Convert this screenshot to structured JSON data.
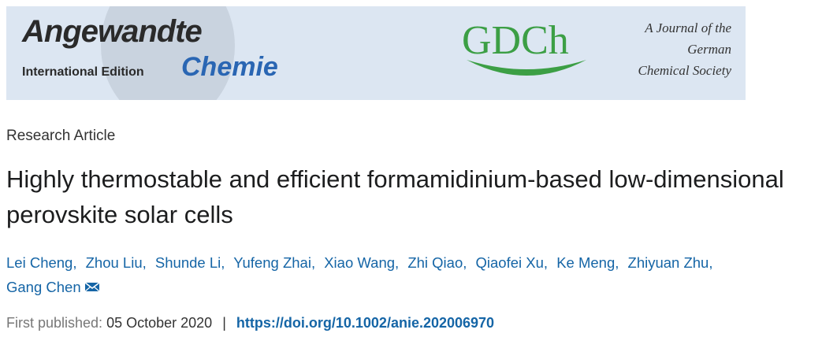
{
  "banner": {
    "journal_name": "Angewandte",
    "edition": "International Edition",
    "journal_subtitle": "Chemie",
    "society_logo": "GDCh",
    "society_lines": [
      "A Journal of the",
      "German",
      "Chemical Society"
    ]
  },
  "article": {
    "type": "Research Article",
    "title": "Highly thermostable and efficient formamidinium-based low-dimensional perovskite solar cells",
    "authors": [
      "Lei Cheng",
      "Zhou Liu",
      "Shunde Li",
      "Yufeng Zhai",
      "Xiao Wang",
      "Zhi Qiao",
      "Qiaofei Xu",
      "Ke Meng",
      "Zhiyuan Zhu",
      "Gang Chen"
    ],
    "author_separator": ",",
    "published_label": "First published:",
    "published_date": "05 October 2020",
    "meta_separator": "|",
    "doi": "https://doi.org/10.1002/anie.202006970"
  }
}
